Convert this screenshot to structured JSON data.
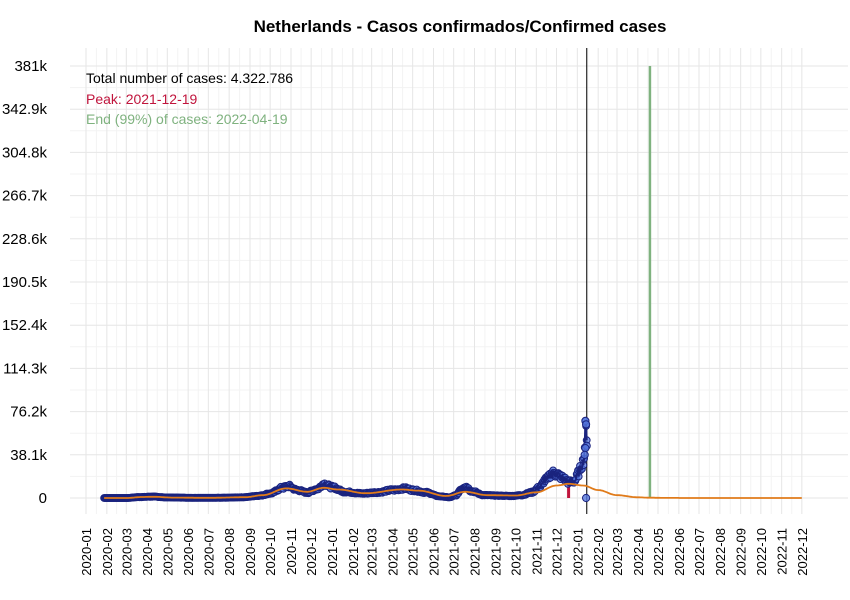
{
  "chart_data": {
    "type": "scatter",
    "title": "Netherlands - Casos confirmados/Confirmed cases",
    "xlabel": "",
    "ylabel": "",
    "x_range": [
      "2020-01-01",
      "2022-12-31"
    ],
    "ylim": [
      0,
      381000
    ],
    "y_ticks": [
      {
        "value": 0,
        "label": "0"
      },
      {
        "value": 38100,
        "label": "38.1k"
      },
      {
        "value": 76200,
        "label": "76.2k"
      },
      {
        "value": 114300,
        "label": "114.3k"
      },
      {
        "value": 152400,
        "label": "152.4k"
      },
      {
        "value": 190500,
        "label": "190.5k"
      },
      {
        "value": 228600,
        "label": "228.6k"
      },
      {
        "value": 266700,
        "label": "266.7k"
      },
      {
        "value": 304800,
        "label": "304.8k"
      },
      {
        "value": 342900,
        "label": "342.9k"
      },
      {
        "value": 381000,
        "label": "381k"
      }
    ],
    "x_ticks": [
      "2020-01",
      "2020-02",
      "2020-03",
      "2020-04",
      "2020-05",
      "2020-06",
      "2020-07",
      "2020-08",
      "2020-09",
      "2020-10",
      "2020-11",
      "2020-12",
      "2021-01",
      "2021-02",
      "2021-03",
      "2021-04",
      "2021-05",
      "2021-06",
      "2021-07",
      "2021-08",
      "2021-09",
      "2021-10",
      "2021-11",
      "2021-12",
      "2022-01",
      "2022-02",
      "2022-03",
      "2022-04",
      "2022-05",
      "2022-06",
      "2022-07",
      "2022-08",
      "2022-09",
      "2022-10",
      "2022-11",
      "2022-12"
    ],
    "grid": true,
    "annotations": {
      "total": "Total number of cases: 4.322.786",
      "peak": "Peak: 2021-12-19",
      "end": "End (99%) of cases: 2022-04-19"
    },
    "colors": {
      "points_fill": "#5577dd",
      "points_stroke": "#1a237e",
      "observed_line": "#1a237e",
      "fitted_line": "#e07b1a",
      "peak": "#c0143c",
      "end": "#7fb27f",
      "today": "#000000",
      "total_text": "#000000"
    },
    "peak_date": "2021-12-19",
    "end_date": "2022-04-19",
    "today_date": "2022-01-15",
    "observed_anchors": [
      [
        "2020-01-28",
        0
      ],
      [
        "2020-03-01",
        0
      ],
      [
        "2020-03-20",
        800
      ],
      [
        "2020-04-08",
        1200
      ],
      [
        "2020-05-01",
        500
      ],
      [
        "2020-06-10",
        150
      ],
      [
        "2020-07-20",
        200
      ],
      [
        "2020-08-20",
        600
      ],
      [
        "2020-09-15",
        2000
      ],
      [
        "2020-10-01",
        4000
      ],
      [
        "2020-10-20",
        9000
      ],
      [
        "2020-10-28",
        10500
      ],
      [
        "2020-11-10",
        7000
      ],
      [
        "2020-11-25",
        4800
      ],
      [
        "2020-12-10",
        8000
      ],
      [
        "2020-12-20",
        12500
      ],
      [
        "2021-01-01",
        9500
      ],
      [
        "2021-01-20",
        5500
      ],
      [
        "2021-02-15",
        4000
      ],
      [
        "2021-03-10",
        5000
      ],
      [
        "2021-04-01",
        7000
      ],
      [
        "2021-04-20",
        8500
      ],
      [
        "2021-05-01",
        7000
      ],
      [
        "2021-05-20",
        5000
      ],
      [
        "2021-06-10",
        1500
      ],
      [
        "2021-06-25",
        600
      ],
      [
        "2021-07-05",
        2500
      ],
      [
        "2021-07-12",
        8000
      ],
      [
        "2021-07-18",
        10500
      ],
      [
        "2021-07-28",
        6000
      ],
      [
        "2021-08-15",
        2500
      ],
      [
        "2021-09-10",
        2000
      ],
      [
        "2021-09-25",
        1800
      ],
      [
        "2021-10-10",
        2500
      ],
      [
        "2021-10-25",
        5000
      ],
      [
        "2021-11-05",
        9000
      ],
      [
        "2021-11-15",
        16000
      ],
      [
        "2021-11-25",
        22000
      ],
      [
        "2021-12-01",
        21000
      ],
      [
        "2021-12-10",
        18000
      ],
      [
        "2021-12-19",
        14000
      ],
      [
        "2021-12-28",
        15000
      ],
      [
        "2022-01-03",
        22000
      ],
      [
        "2022-01-08",
        30000
      ],
      [
        "2022-01-11",
        35000
      ],
      [
        "2022-01-13",
        60000
      ],
      [
        "2022-01-15",
        58000
      ]
    ],
    "extra_points": [
      [
        "2022-01-13",
        68000
      ],
      [
        "2022-01-14",
        65000
      ],
      [
        "2022-01-15",
        46000
      ],
      [
        "2022-01-13",
        44000
      ],
      [
        "2022-01-12",
        38000
      ],
      [
        "2022-01-14",
        0
      ]
    ],
    "fitted_anchors": [
      [
        "2020-01-28",
        0
      ],
      [
        "2020-03-01",
        0
      ],
      [
        "2020-03-25",
        900
      ],
      [
        "2020-04-10",
        1100
      ],
      [
        "2020-05-10",
        350
      ],
      [
        "2020-07-01",
        150
      ],
      [
        "2020-08-25",
        700
      ],
      [
        "2020-09-20",
        2500
      ],
      [
        "2020-10-25",
        8500
      ],
      [
        "2020-11-25",
        5500
      ],
      [
        "2020-12-20",
        9000
      ],
      [
        "2021-01-10",
        7500
      ],
      [
        "2021-02-20",
        4200
      ],
      [
        "2021-04-15",
        7500
      ],
      [
        "2021-05-10",
        6500
      ],
      [
        "2021-06-20",
        1800
      ],
      [
        "2021-07-18",
        5500
      ],
      [
        "2021-08-20",
        2500
      ],
      [
        "2021-10-01",
        2200
      ],
      [
        "2021-11-01",
        5000
      ],
      [
        "2021-12-01",
        11000
      ],
      [
        "2021-12-19",
        12500
      ],
      [
        "2022-01-10",
        11000
      ],
      [
        "2022-02-01",
        7000
      ],
      [
        "2022-03-01",
        2500
      ],
      [
        "2022-04-01",
        600
      ],
      [
        "2022-04-19",
        250
      ],
      [
        "2022-05-15",
        60
      ],
      [
        "2022-07-01",
        0
      ],
      [
        "2022-12-01",
        0
      ]
    ]
  }
}
